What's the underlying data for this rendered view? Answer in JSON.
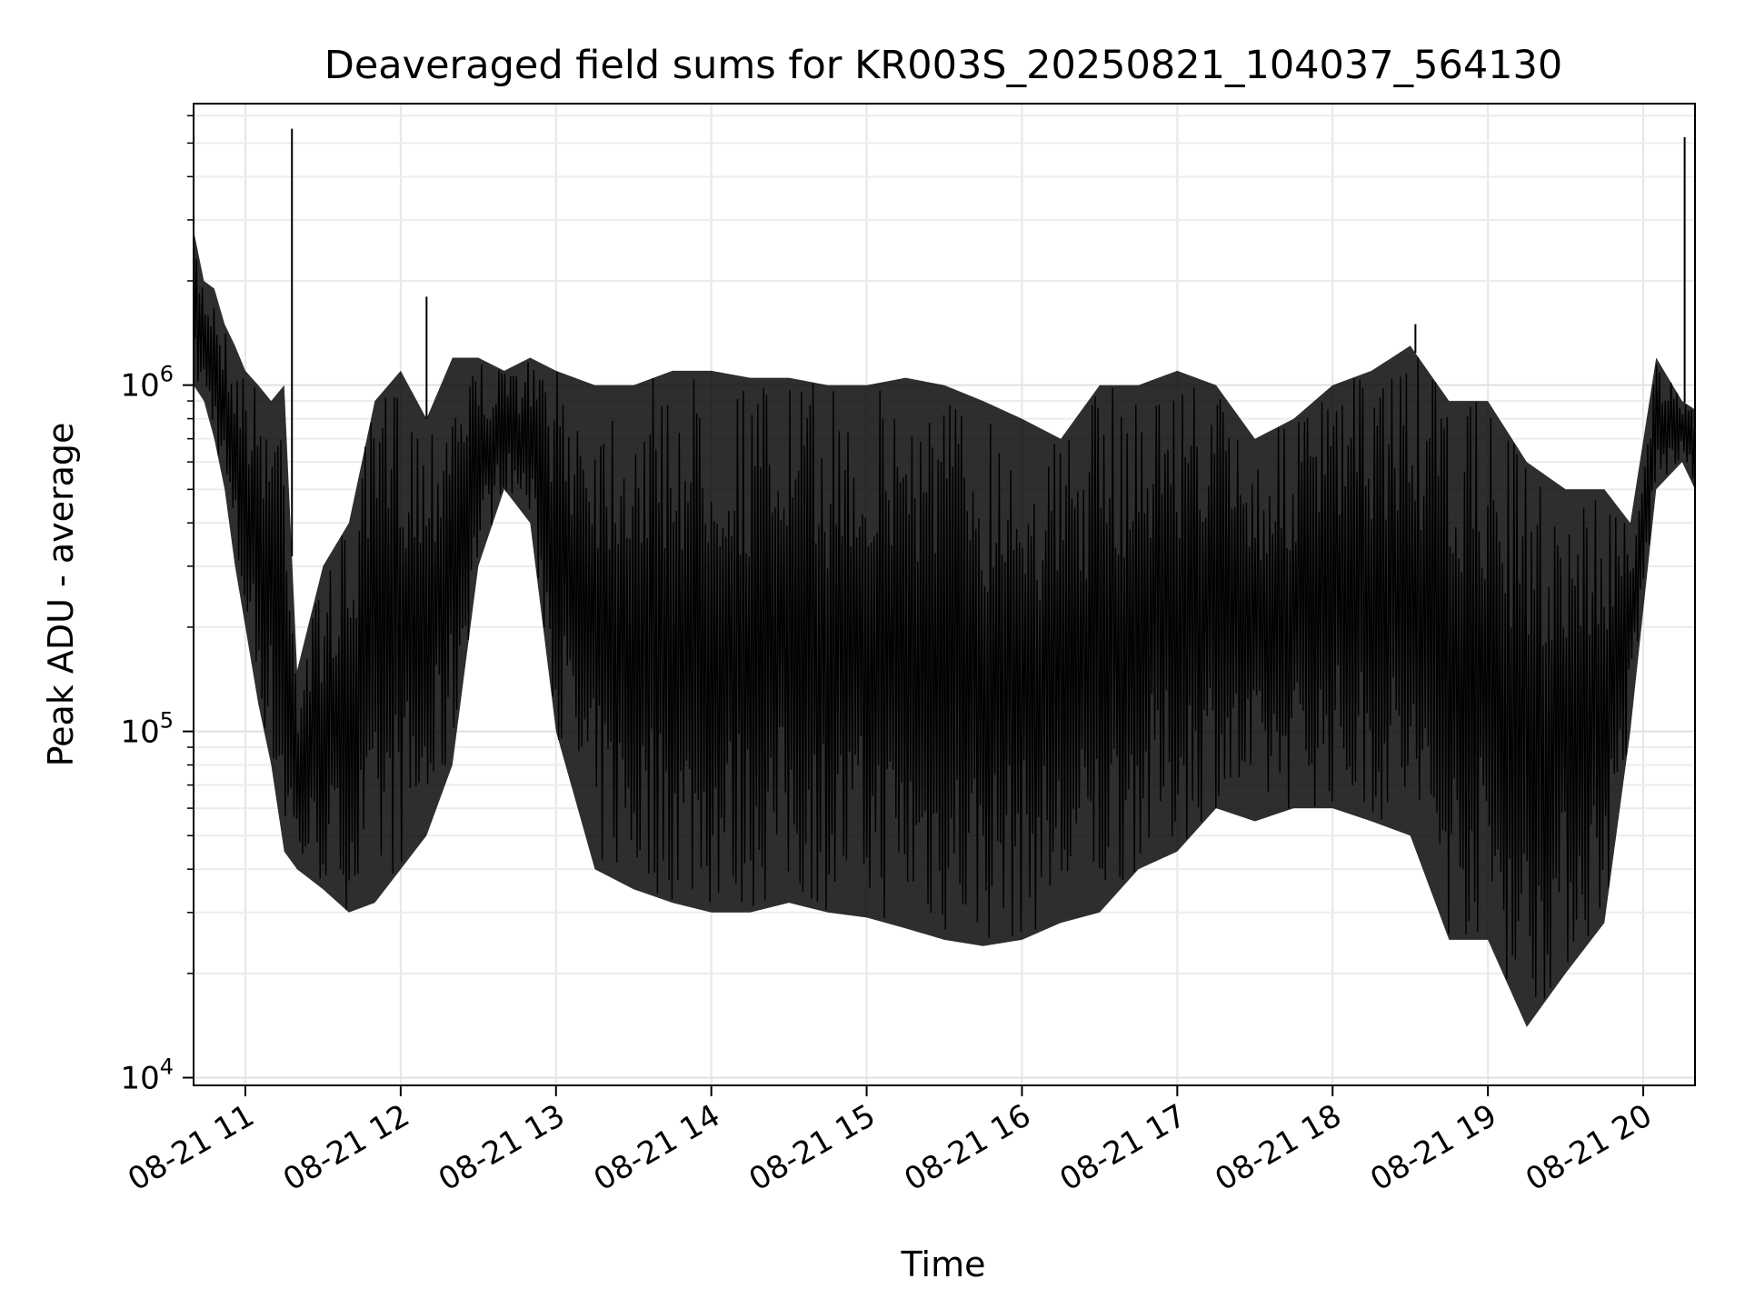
{
  "chart_data": {
    "type": "line",
    "title": "Deaveraged field sums for KR003S_20250821_104037_564130",
    "xlabel": "Time",
    "ylabel": "Peak ADU - average",
    "y_scale": "log",
    "ylim": [
      9500,
      6500000
    ],
    "xlim": [
      "2025-08-21 10:40",
      "2025-08-21 20:20"
    ],
    "grid": true,
    "line_color": "#000000",
    "x_ticks": [
      {
        "value": "2025-08-21 11:00",
        "label": "08-21 11"
      },
      {
        "value": "2025-08-21 12:00",
        "label": "08-21 12"
      },
      {
        "value": "2025-08-21 13:00",
        "label": "08-21 13"
      },
      {
        "value": "2025-08-21 14:00",
        "label": "08-21 14"
      },
      {
        "value": "2025-08-21 15:00",
        "label": "08-21 15"
      },
      {
        "value": "2025-08-21 16:00",
        "label": "08-21 16"
      },
      {
        "value": "2025-08-21 17:00",
        "label": "08-21 17"
      },
      {
        "value": "2025-08-21 18:00",
        "label": "08-21 18"
      },
      {
        "value": "2025-08-21 19:00",
        "label": "08-21 19"
      },
      {
        "value": "2025-08-21 20:00",
        "label": "08-21 20"
      }
    ],
    "y_ticks": [
      {
        "value": 10000,
        "base": "10",
        "exp": "4"
      },
      {
        "value": 100000,
        "base": "10",
        "exp": "5"
      },
      {
        "value": 1000000,
        "base": "10",
        "exp": "6"
      }
    ],
    "series": [
      {
        "x": [
          "2025-08-21 10:40",
          "2025-08-21 10:44",
          "2025-08-21 10:48",
          "2025-08-21 10:52",
          "2025-08-21 10:56",
          "2025-08-21 11:00",
          "2025-08-21 11:05",
          "2025-08-21 11:10",
          "2025-08-21 11:15",
          "2025-08-21 11:20",
          "2025-08-21 11:30",
          "2025-08-21 11:40",
          "2025-08-21 11:50",
          "2025-08-21 12:00",
          "2025-08-21 12:10",
          "2025-08-21 12:20",
          "2025-08-21 12:30",
          "2025-08-21 12:40",
          "2025-08-21 12:50",
          "2025-08-21 13:00",
          "2025-08-21 13:15",
          "2025-08-21 13:30",
          "2025-08-21 13:45",
          "2025-08-21 14:00",
          "2025-08-21 14:15",
          "2025-08-21 14:30",
          "2025-08-21 14:45",
          "2025-08-21 15:00",
          "2025-08-21 15:15",
          "2025-08-21 15:30",
          "2025-08-21 15:45",
          "2025-08-21 16:00",
          "2025-08-21 16:15",
          "2025-08-21 16:30",
          "2025-08-21 16:45",
          "2025-08-21 17:00",
          "2025-08-21 17:15",
          "2025-08-21 17:30",
          "2025-08-21 17:45",
          "2025-08-21 18:00",
          "2025-08-21 18:15",
          "2025-08-21 18:30",
          "2025-08-21 18:45",
          "2025-08-21 19:00",
          "2025-08-21 19:15",
          "2025-08-21 19:30",
          "2025-08-21 19:45",
          "2025-08-21 19:55",
          "2025-08-21 20:05",
          "2025-08-21 20:15",
          "2025-08-21 20:20"
        ],
        "upper": [
          2800000,
          2000000,
          1900000,
          1500000,
          1300000,
          1100000,
          1000000,
          900000,
          1000000,
          150000,
          300000,
          400000,
          900000,
          1100000,
          800000,
          1200000,
          1200000,
          1100000,
          1200000,
          1100000,
          1000000,
          1000000,
          1100000,
          1100000,
          1050000,
          1050000,
          1000000,
          1000000,
          1050000,
          1000000,
          900000,
          800000,
          700000,
          1000000,
          1000000,
          1100000,
          1000000,
          700000,
          800000,
          1000000,
          1100000,
          1300000,
          900000,
          900000,
          600000,
          500000,
          500000,
          400000,
          1200000,
          900000,
          850000
        ],
        "lower": [
          1000000,
          900000,
          700000,
          500000,
          300000,
          200000,
          120000,
          80000,
          45000,
          40000,
          35000,
          30000,
          32000,
          40000,
          50000,
          80000,
          300000,
          500000,
          400000,
          100000,
          40000,
          35000,
          32000,
          30000,
          30000,
          32000,
          30000,
          29000,
          27000,
          25000,
          24000,
          25000,
          28000,
          30000,
          40000,
          45000,
          60000,
          55000,
          60000,
          60000,
          55000,
          50000,
          25000,
          25000,
          14000,
          20000,
          28000,
          100000,
          500000,
          600000,
          500000
        ]
      }
    ],
    "spikes": [
      {
        "x": "2025-08-21 11:18",
        "y": 5500000
      },
      {
        "x": "2025-08-21 12:10",
        "y": 1800000
      },
      {
        "x": "2025-08-21 18:32",
        "y": 1500000
      },
      {
        "x": "2025-08-21 20:16",
        "y": 5200000
      }
    ]
  }
}
